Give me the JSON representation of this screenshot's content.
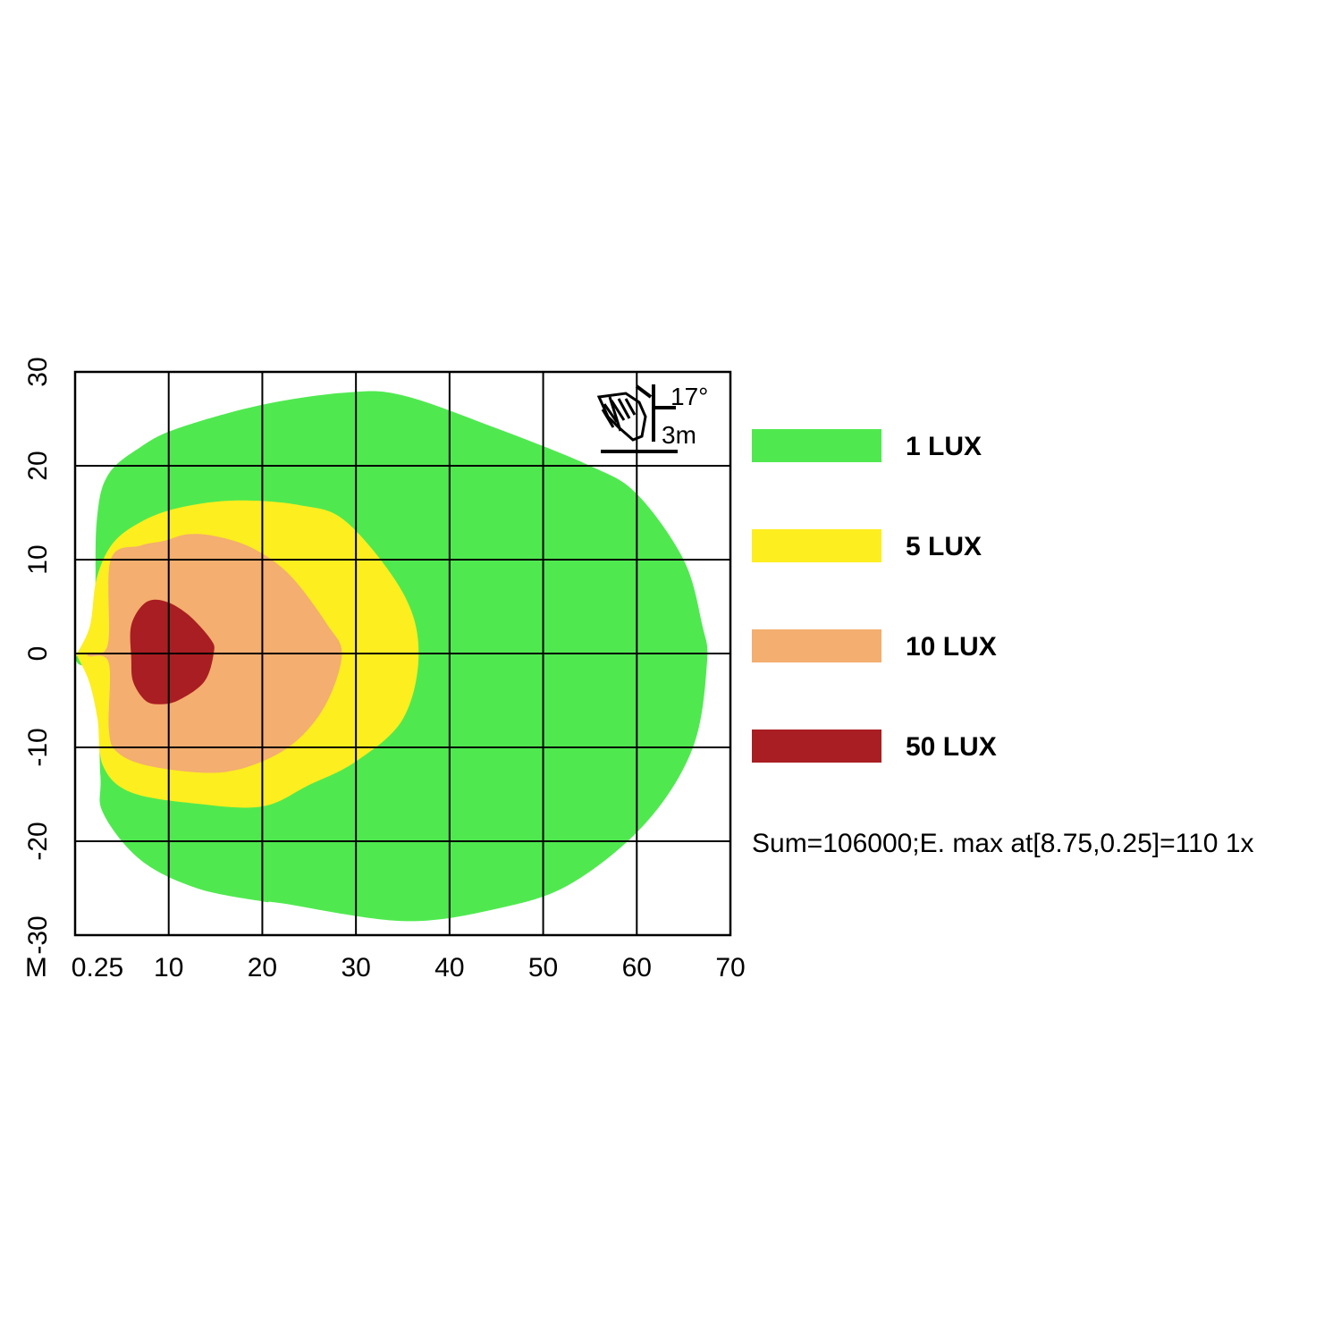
{
  "chart_data": {
    "type": "isolux-contour",
    "xlabel": "M",
    "x_ticks": [
      "0.25",
      "10",
      "20",
      "30",
      "40",
      "50",
      "60",
      "70"
    ],
    "x_tick_values": [
      0.25,
      10,
      20,
      30,
      40,
      50,
      60,
      70
    ],
    "y_ticks": [
      "30",
      "20",
      "10",
      "0",
      "-10",
      "-20",
      "-30"
    ],
    "y_tick_values": [
      30,
      20,
      10,
      0,
      -10,
      -20,
      -30
    ],
    "xlim": [
      0,
      70
    ],
    "ylim": [
      -30,
      30
    ],
    "grid": true,
    "legend_placement": "right",
    "levels": [
      {
        "label": "1  LUX",
        "lux": 1,
        "color": "#4fe94f",
        "outline": [
          [
            0.25,
            0
          ],
          [
            2,
            4
          ],
          [
            2.3,
            14
          ],
          [
            3.5,
            19
          ],
          [
            7,
            22
          ],
          [
            11,
            24
          ],
          [
            20,
            26.5
          ],
          [
            29,
            27.8
          ],
          [
            35,
            27.5
          ],
          [
            45,
            24
          ],
          [
            55,
            20
          ],
          [
            60,
            17
          ],
          [
            65,
            10
          ],
          [
            67,
            3
          ],
          [
            67.5,
            -1
          ],
          [
            66,
            -10
          ],
          [
            61,
            -18
          ],
          [
            53,
            -24.5
          ],
          [
            45,
            -27.2
          ],
          [
            35,
            -28.5
          ],
          [
            22,
            -26.6
          ],
          [
            20,
            -26.4
          ],
          [
            13,
            -25
          ],
          [
            7,
            -22
          ],
          [
            3,
            -17
          ],
          [
            2.7,
            -13
          ],
          [
            2.2,
            -3
          ],
          [
            0.25,
            -1
          ]
        ]
      },
      {
        "label": "5  LUX",
        "lux": 5,
        "color": "#fdee1f",
        "outline": [
          [
            0.25,
            0
          ],
          [
            1.6,
            3
          ],
          [
            2.3,
            8
          ],
          [
            4,
            11.7
          ],
          [
            7,
            14
          ],
          [
            11,
            15.5
          ],
          [
            17,
            16.3
          ],
          [
            24,
            15.8
          ],
          [
            29,
            14
          ],
          [
            35,
            6.5
          ],
          [
            36.7,
            0
          ],
          [
            35,
            -7
          ],
          [
            30,
            -11.5
          ],
          [
            25,
            -14
          ],
          [
            20,
            -16.3
          ],
          [
            13,
            -16
          ],
          [
            6,
            -14.8
          ],
          [
            3,
            -12
          ],
          [
            2.4,
            -7
          ],
          [
            1.5,
            -3
          ],
          [
            0.25,
            -0.3
          ]
        ]
      },
      {
        "label": "10  LUX",
        "lux": 10,
        "color": "#f4ae6f",
        "outline": [
          [
            1.5,
            0
          ],
          [
            3.5,
            1
          ],
          [
            3.8,
            10
          ],
          [
            7,
            11.5
          ],
          [
            9.5,
            12
          ],
          [
            12,
            12.7
          ],
          [
            15,
            12.5
          ],
          [
            19,
            11.2
          ],
          [
            23,
            8.3
          ],
          [
            27,
            3
          ],
          [
            28.5,
            0
          ],
          [
            27,
            -5
          ],
          [
            24,
            -9
          ],
          [
            20,
            -11.5
          ],
          [
            15,
            -12.7
          ],
          [
            8,
            -12
          ],
          [
            4.5,
            -10.5
          ],
          [
            3.6,
            -8
          ],
          [
            3.6,
            -1
          ],
          [
            1.5,
            -0.3
          ]
        ]
      },
      {
        "label": "50  LUX",
        "lux": 50,
        "color": "#a91e22",
        "outline": [
          [
            6,
            3
          ],
          [
            7.5,
            5.4
          ],
          [
            9.5,
            5.6
          ],
          [
            12,
            4.2
          ],
          [
            14.5,
            1.5
          ],
          [
            14.8,
            0
          ],
          [
            13.8,
            -3
          ],
          [
            11,
            -5
          ],
          [
            9,
            -5.4
          ],
          [
            7.5,
            -5
          ],
          [
            6.2,
            -3
          ],
          [
            6,
            -0.5
          ]
        ]
      }
    ],
    "summary": "Sum=106000;E. max at[8.75,0.25]=110 1x",
    "mounting": {
      "angle": "17°",
      "height": "3m"
    }
  }
}
